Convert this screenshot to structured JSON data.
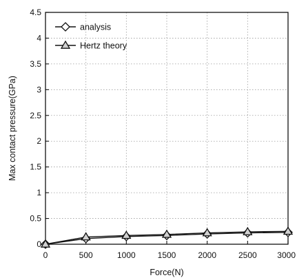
{
  "chart_data": {
    "type": "line",
    "title": "",
    "xlabel": "Force(N)",
    "ylabel": "Max contact pressure(GPa)",
    "xlim": [
      0,
      3000
    ],
    "ylim": [
      0,
      4.5
    ],
    "grid": true,
    "legend_position": "top-left",
    "x_ticks": [
      "0",
      "500",
      "1000",
      "1500",
      "2000",
      "2500",
      "3000"
    ],
    "y_ticks": [
      "0",
      "0.5",
      "1",
      "1.5",
      "2",
      "2.5",
      "3",
      "3.5",
      "4",
      "4.5"
    ],
    "x": [
      0,
      500,
      1000,
      1500,
      2000,
      2500,
      3000
    ],
    "series": [
      {
        "name": "analysis",
        "marker": "diamond",
        "values": [
          0,
          0.11,
          0.15,
          0.17,
          0.2,
          0.22,
          0.23
        ]
      },
      {
        "name": "Hertz theory",
        "marker": "triangle",
        "values": [
          0,
          0.14,
          0.17,
          0.19,
          0.22,
          0.24,
          0.25
        ]
      }
    ]
  }
}
